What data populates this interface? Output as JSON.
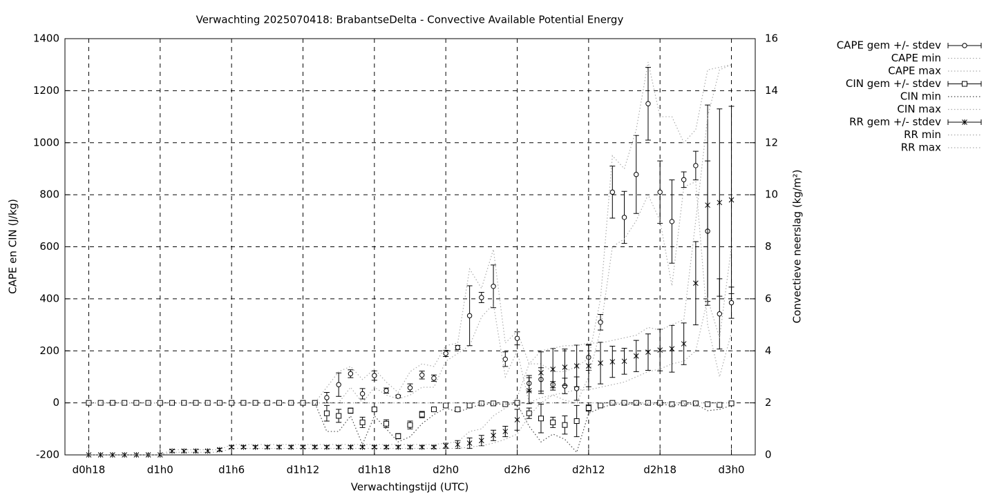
{
  "chart_data": {
    "type": "errorbar-line",
    "title": "Verwachting 2025070418: BrabantseDelta - Convective Available Potential Energy",
    "x_label": "Verwachtingstijd (UTC)",
    "y_label": "CAPE en CIN (J/kg)",
    "y2_label": "Convectieve neerslag (kg/m²)",
    "x": [
      18,
      19,
      20,
      21,
      22,
      23,
      24,
      25,
      26,
      27,
      28,
      29,
      30,
      31,
      32,
      33,
      34,
      35,
      36,
      37,
      38,
      39,
      40,
      41,
      42,
      43,
      44,
      45,
      46,
      47,
      48,
      49,
      50,
      51,
      52,
      53,
      54,
      55,
      56,
      57,
      58,
      59,
      60,
      61,
      62,
      63,
      64,
      65,
      66,
      67,
      68,
      69,
      70,
      71,
      72
    ],
    "xlim": [
      16,
      74
    ],
    "xticks": [
      {
        "value": 18,
        "label": "d0h18"
      },
      {
        "value": 24,
        "label": "d1h0"
      },
      {
        "value": 30,
        "label": "d1h6"
      },
      {
        "value": 36,
        "label": "d1h12"
      },
      {
        "value": 42,
        "label": "d1h18"
      },
      {
        "value": 48,
        "label": "d2h0"
      },
      {
        "value": 54,
        "label": "d2h6"
      },
      {
        "value": 60,
        "label": "d2h12"
      },
      {
        "value": 66,
        "label": "d2h18"
      },
      {
        "value": 72,
        "label": "d3h0"
      }
    ],
    "ylim": [
      -200,
      1400
    ],
    "yticks": [
      -200,
      0,
      200,
      400,
      600,
      800,
      1000,
      1200,
      1400
    ],
    "y2lim": [
      0,
      16
    ],
    "y2ticks": [
      0,
      2,
      4,
      6,
      8,
      10,
      12,
      14,
      16
    ],
    "grid": true,
    "legend": "outside-top-right",
    "series": [
      {
        "name": "CAPE gem +/- stdev",
        "color": "#000000",
        "marker": "circle",
        "values": [
          0,
          0,
          0,
          0,
          0,
          0,
          0,
          0,
          0,
          0,
          0,
          0,
          0,
          0,
          0,
          0,
          0,
          0,
          0,
          0,
          20,
          70,
          112,
          35,
          105,
          47,
          25,
          58,
          107,
          95,
          190,
          213,
          335,
          405,
          448,
          168,
          248,
          75,
          90,
          70,
          65,
          55,
          175,
          310,
          810,
          713,
          878,
          1150,
          810,
          697,
          858,
          912,
          660,
          342,
          385
        ],
        "errors": [
          0,
          0,
          0,
          0,
          0,
          0,
          0,
          0,
          0,
          0,
          0,
          0,
          0,
          0,
          0,
          0,
          0,
          0,
          0,
          0,
          20,
          45,
          15,
          20,
          18,
          10,
          5,
          15,
          15,
          12,
          12,
          8,
          115,
          20,
          82,
          28,
          25,
          30,
          45,
          12,
          30,
          45,
          50,
          30,
          100,
          100,
          150,
          140,
          120,
          160,
          30,
          55,
          270,
          135,
          60
        ]
      },
      {
        "name": "CAPE min",
        "color": "#aaaaaa",
        "line": "dotted",
        "values": [
          0,
          0,
          0,
          0,
          0,
          0,
          0,
          0,
          0,
          0,
          0,
          0,
          0,
          0,
          0,
          0,
          0,
          0,
          0,
          0,
          0,
          0,
          60,
          0,
          60,
          30,
          15,
          30,
          60,
          60,
          160,
          190,
          220,
          330,
          380,
          100,
          200,
          0,
          20,
          30,
          10,
          0,
          100,
          280,
          600,
          630,
          700,
          800,
          700,
          450,
          830,
          850,
          300,
          100,
          270
        ]
      },
      {
        "name": "CAPE max",
        "color": "#aaaaaa",
        "line": "dotted",
        "values": [
          0,
          0,
          0,
          0,
          0,
          0,
          0,
          0,
          0,
          0,
          0,
          0,
          0,
          0,
          0,
          0,
          0,
          0,
          0,
          0,
          60,
          120,
          140,
          90,
          130,
          80,
          40,
          120,
          150,
          140,
          220,
          230,
          515,
          440,
          590,
          230,
          275,
          150,
          150,
          120,
          120,
          140,
          170,
          400,
          950,
          900,
          1050,
          1310,
          1100,
          1100,
          1000,
          1050,
          1280,
          1290,
          1300
        ]
      },
      {
        "name": "CIN gem +/- stdev",
        "color": "#000000",
        "marker": "square",
        "values": [
          0,
          0,
          0,
          0,
          0,
          0,
          0,
          0,
          0,
          0,
          0,
          0,
          0,
          0,
          0,
          0,
          0,
          0,
          0,
          0,
          -40,
          -50,
          -30,
          -75,
          -25,
          -80,
          -128,
          -85,
          -45,
          -25,
          -10,
          -25,
          -10,
          -2,
          -2,
          -5,
          0,
          -40,
          -60,
          -75,
          -85,
          -70,
          -20,
          -10,
          0,
          0,
          0,
          0,
          0,
          -5,
          -2,
          -2,
          -5,
          -8,
          -2
        ],
        "errors": [
          0,
          0,
          0,
          0,
          0,
          0,
          0,
          0,
          0,
          0,
          0,
          0,
          0,
          0,
          0,
          0,
          0,
          0,
          0,
          0,
          30,
          25,
          10,
          20,
          5,
          15,
          10,
          15,
          12,
          5,
          5,
          8,
          8,
          3,
          3,
          3,
          3,
          20,
          55,
          20,
          35,
          60,
          12,
          5,
          3,
          3,
          3,
          3,
          3,
          3,
          3,
          3,
          5,
          5,
          3
        ]
      },
      {
        "name": "CIN min",
        "color": "#444444",
        "line": "dotted",
        "values": [
          0,
          0,
          0,
          0,
          0,
          0,
          0,
          0,
          0,
          0,
          0,
          0,
          0,
          0,
          0,
          0,
          0,
          0,
          0,
          0,
          -110,
          -110,
          -50,
          -160,
          -50,
          -100,
          -150,
          -130,
          -80,
          -45,
          -20,
          -35,
          -20,
          -5,
          -5,
          -5,
          -5,
          -90,
          -150,
          -120,
          -140,
          -190,
          -40,
          -20,
          -5,
          -5,
          -5,
          -5,
          -5,
          -10,
          -5,
          -5,
          -30,
          -25,
          -10
        ]
      },
      {
        "name": "CIN max",
        "color": "#aaaaaa",
        "line": "dotted",
        "values": [
          0,
          0,
          0,
          0,
          0,
          0,
          0,
          0,
          0,
          0,
          0,
          0,
          0,
          0,
          0,
          0,
          0,
          0,
          0,
          0,
          0,
          0,
          0,
          0,
          0,
          0,
          0,
          0,
          0,
          0,
          0,
          0,
          0,
          0,
          0,
          0,
          0,
          0,
          0,
          0,
          0,
          0,
          0,
          0,
          0,
          0,
          0,
          0,
          0,
          0,
          0,
          0,
          0,
          0,
          0
        ]
      },
      {
        "name": "RR gem +/- stdev",
        "color": "#000000",
        "marker": "star",
        "axis": "y2",
        "values": [
          0,
          0,
          0,
          0,
          0,
          0,
          0,
          0.15,
          0.15,
          0.15,
          0.15,
          0.2,
          0.3,
          0.3,
          0.3,
          0.3,
          0.3,
          0.3,
          0.3,
          0.3,
          0.3,
          0.3,
          0.3,
          0.3,
          0.3,
          0.3,
          0.3,
          0.3,
          0.3,
          0.3,
          0.35,
          0.4,
          0.45,
          0.55,
          0.75,
          0.9,
          1.35,
          2.47,
          3.16,
          3.29,
          3.37,
          3.42,
          3.42,
          3.53,
          3.58,
          3.6,
          3.8,
          3.95,
          4.03,
          4.08,
          4.27,
          6.6,
          9.6,
          9.7,
          9.8
        ],
        "errors": [
          0,
          0,
          0,
          0,
          0,
          0,
          0,
          0.05,
          0.05,
          0.05,
          0.05,
          0.05,
          0.05,
          0.05,
          0.05,
          0.05,
          0.05,
          0.05,
          0.05,
          0.05,
          0.05,
          0.05,
          0.05,
          0.05,
          0.05,
          0.05,
          0.05,
          0.05,
          0.05,
          0.05,
          0.1,
          0.15,
          0.2,
          0.2,
          0.2,
          0.2,
          0.4,
          0.5,
          0.8,
          0.8,
          0.7,
          0.8,
          0.8,
          0.8,
          0.6,
          0.5,
          0.6,
          0.7,
          0.8,
          0.9,
          0.8,
          1.6,
          3.85,
          3.6,
          3.6
        ]
      },
      {
        "name": "RR min",
        "color": "#aaaaaa",
        "line": "dotted",
        "axis": "y2",
        "values": [
          0,
          0,
          0,
          0,
          0,
          0,
          0,
          0.1,
          0.1,
          0.1,
          0.1,
          0.1,
          0.25,
          0.25,
          0.25,
          0.25,
          0.25,
          0.25,
          0.25,
          0.25,
          0.25,
          0.25,
          0.25,
          0.25,
          0.25,
          0.25,
          0.25,
          0.25,
          0.25,
          0.25,
          0.25,
          0.25,
          0.3,
          0.35,
          0.45,
          0.6,
          0.8,
          1.5,
          2.0,
          2.3,
          2.4,
          2.5,
          2.5,
          2.6,
          2.7,
          2.8,
          3.0,
          3.2,
          3.3,
          3.5,
          3.6,
          4.0,
          6.0,
          4.5,
          8.0
        ]
      },
      {
        "name": "RR max",
        "color": "#aaaaaa",
        "line": "dotted",
        "axis": "y2",
        "values": [
          0,
          0,
          0,
          0,
          0,
          0,
          0,
          0.2,
          0.2,
          0.2,
          0.2,
          0.2,
          0.4,
          0.4,
          0.4,
          0.4,
          0.4,
          0.4,
          0.4,
          0.4,
          0.4,
          0.4,
          0.4,
          0.4,
          0.4,
          0.4,
          0.4,
          0.4,
          0.4,
          0.4,
          0.45,
          0.5,
          0.9,
          1.0,
          1.5,
          1.8,
          2.2,
          3.5,
          4.0,
          4.1,
          4.2,
          4.2,
          4.3,
          4.3,
          4.4,
          4.5,
          4.6,
          4.9,
          4.8,
          5.0,
          5.2,
          9.0,
          13.0,
          14.8,
          15.0
        ]
      }
    ]
  }
}
